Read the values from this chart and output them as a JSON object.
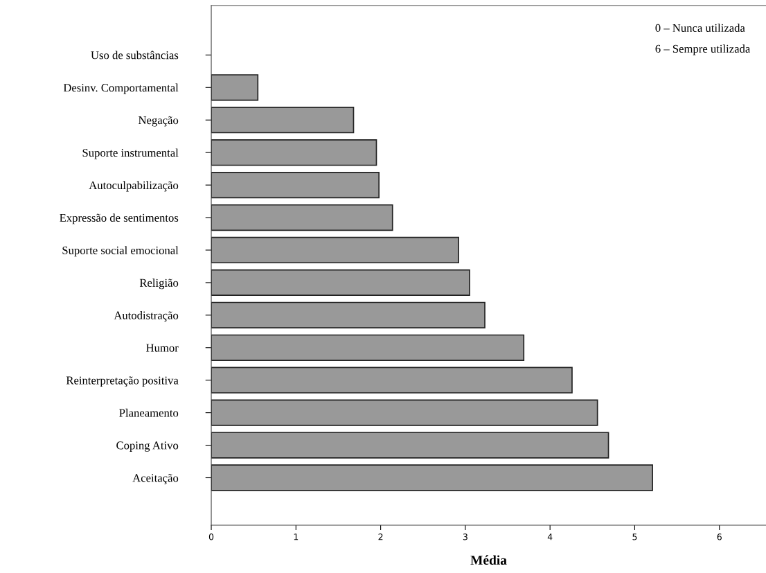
{
  "chart_data": {
    "type": "bar",
    "orientation": "horizontal",
    "xlabel": "Média",
    "categories": [
      "Uso de substâncias",
      "Desinv. Comportamental",
      "Negação",
      "Suporte instrumental",
      "Autoculpabilização",
      "Expressão de sentimentos",
      "Suporte social emocional",
      "Religião",
      "Autodistração",
      "Humor",
      "Reinterpretação positiva",
      "Planeamento",
      "Coping Ativo",
      "Aceitação"
    ],
    "values": [
      0,
      0.55,
      1.68,
      1.95,
      1.98,
      2.14,
      2.92,
      3.05,
      3.23,
      3.69,
      4.26,
      4.56,
      4.69,
      5.21
    ],
    "color": "#999999",
    "xlim": [
      0,
      6.55
    ],
    "xticks": [
      0,
      1,
      2,
      3,
      4,
      5,
      6
    ],
    "grid": false,
    "annotations": [
      "0 – Nunca utilizada",
      "6 – Sempre utilizada"
    ]
  }
}
